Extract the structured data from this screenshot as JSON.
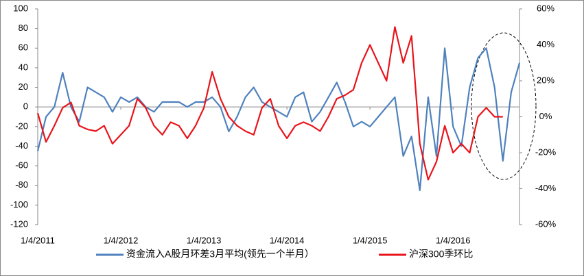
{
  "chart_data": {
    "type": "line",
    "x": [
      2011.0,
      2011.1,
      2011.2,
      2011.3,
      2011.4,
      2011.5,
      2011.6,
      2011.7,
      2011.8,
      2011.9,
      2012.0,
      2012.1,
      2012.2,
      2012.3,
      2012.4,
      2012.5,
      2012.6,
      2012.7,
      2012.8,
      2012.9,
      2013.0,
      2013.1,
      2013.2,
      2013.3,
      2013.4,
      2013.5,
      2013.6,
      2013.7,
      2013.8,
      2013.9,
      2014.0,
      2014.1,
      2014.2,
      2014.3,
      2014.4,
      2014.5,
      2014.6,
      2014.7,
      2014.8,
      2014.9,
      2015.0,
      2015.1,
      2015.2,
      2015.3,
      2015.4,
      2015.5,
      2015.6,
      2015.7,
      2015.8,
      2015.9,
      2016.0,
      2016.1,
      2016.2,
      2016.3,
      2016.4,
      2016.5,
      2016.6,
      2016.7,
      2016.8
    ],
    "xlim": [
      2011.0,
      2016.8
    ],
    "xticks": [
      {
        "value": 2011.0,
        "label": "1/4/2011"
      },
      {
        "value": 2012.0,
        "label": "1/4/2012"
      },
      {
        "value": 2013.0,
        "label": "1/4/2013"
      },
      {
        "value": 2014.0,
        "label": "1/4/2014"
      },
      {
        "value": 2015.0,
        "label": "1/4/2015"
      },
      {
        "value": 2016.0,
        "label": "1/4/2016"
      }
    ],
    "ylim": [
      -120,
      100
    ],
    "yticks": [
      -120,
      -100,
      -80,
      -60,
      -40,
      -20,
      0,
      20,
      40,
      60,
      80,
      100
    ],
    "y2lim": [
      -60,
      60
    ],
    "y2ticks": [
      {
        "value": -60,
        "label": "-60%"
      },
      {
        "value": -40,
        "label": "-40%"
      },
      {
        "value": -20,
        "label": "-20%"
      },
      {
        "value": 0,
        "label": "0%"
      },
      {
        "value": 20,
        "label": "20%"
      },
      {
        "value": 40,
        "label": "40%"
      },
      {
        "value": 60,
        "label": "60%"
      }
    ],
    "series": [
      {
        "name": "资金流入A股月环差3月平均(领先一个半月）",
        "color": "#4f81bd",
        "values": [
          -45,
          -10,
          0,
          35,
          0,
          -15,
          20,
          15,
          10,
          -5,
          10,
          5,
          10,
          0,
          -5,
          5,
          5,
          5,
          0,
          5,
          5,
          10,
          0,
          -25,
          -10,
          10,
          20,
          5,
          0,
          -5,
          -10,
          10,
          15,
          -15,
          -5,
          10,
          25,
          5,
          -20,
          -15,
          -20,
          -10,
          0,
          10,
          -50,
          -30,
          -85,
          10,
          -50,
          60,
          -20,
          -40,
          20,
          50,
          60,
          20,
          -55,
          15,
          45
        ]
      },
      {
        "name": "沪深300季环比",
        "color": "#e8141b",
        "axis": "y2",
        "values": [
          2,
          -14,
          -5,
          5,
          8,
          -5,
          -7,
          -8,
          -5,
          -15,
          -10,
          -5,
          10,
          5,
          -5,
          -10,
          -3,
          -5,
          -12,
          -5,
          5,
          25,
          10,
          0,
          -5,
          -8,
          -10,
          5,
          10,
          -5,
          -12,
          -5,
          -3,
          -5,
          -8,
          0,
          10,
          12,
          15,
          30,
          40,
          30,
          20,
          50,
          30,
          45,
          -15,
          -35,
          -25,
          -5,
          -20,
          -15,
          -20,
          0,
          5,
          0,
          0,
          null,
          null
        ]
      }
    ]
  }
}
